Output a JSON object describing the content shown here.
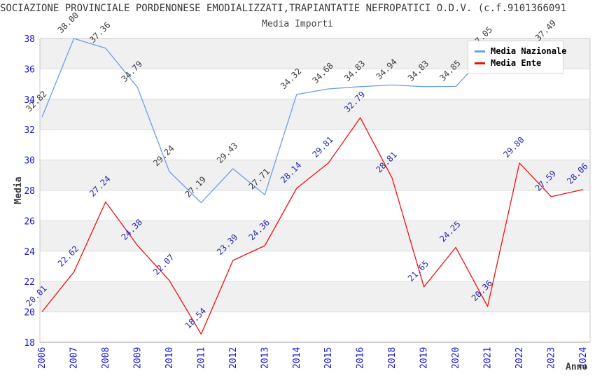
{
  "title": "SOCIAZIONE PROVINCIALE PORDENONESE EMODIALIZZATI,TRAPIANTATIE NEFROPATICI O.D.V. (c.f.9101366091",
  "subtitle": "Media Importi",
  "x_axis_title": "Anno",
  "y_axis_title": "Media",
  "legend": [
    {
      "label": "Media Nazionale",
      "color": "#6d9eea"
    },
    {
      "label": "Media Ente",
      "color": "#ee1111"
    }
  ],
  "colors": {
    "axis_tick_text": "#1515d6",
    "band_gray": "#f0f0f0",
    "band_white": "#ffffff",
    "gridline": "#dcdcdc",
    "plot_border": "#c8c8c8",
    "axis_bottom_line": "#9a9a9a",
    "title_text": "#3a3a3a",
    "nazionale_label_text": "#3c3c3c",
    "ente_label_text": "#2828b0"
  },
  "chart_data": {
    "type": "line",
    "title": "Media Importi",
    "xlabel": "Anno",
    "ylabel": "Media",
    "ylim": [
      18,
      38
    ],
    "y_ticks": [
      38,
      36,
      34,
      32,
      30,
      28,
      26,
      24,
      22,
      20,
      18
    ],
    "grid": "horizontal gridlines with alternating gray/white bands",
    "legend_position": "top-right, opaque box overlapping plot",
    "categories": [
      "2006",
      "2007",
      "2008",
      "2009",
      "2010",
      "2011",
      "2012",
      "2013",
      "2014",
      "2015",
      "2016",
      "2018",
      "2019",
      "2020",
      "2021",
      "2022",
      "2023",
      "2024"
    ],
    "series": [
      {
        "name": "Media Nazionale",
        "color": "#6d9eea",
        "label_color": "#3c3c3c",
        "values": [
          32.82,
          38.0,
          37.36,
          34.79,
          29.24,
          27.19,
          29.43,
          27.71,
          34.32,
          34.68,
          34.83,
          34.94,
          34.83,
          34.85,
          37.05,
          36.8,
          37.49,
          null
        ],
        "point_labels": [
          "32.82",
          "38.00",
          "37.36",
          "34.79",
          "29.24",
          "27.19",
          "29.43",
          "27.71",
          "34.32",
          "34.68",
          "34.83",
          "34.94",
          "34.83",
          "34.85",
          "37.05",
          "",
          "37.49",
          ""
        ]
      },
      {
        "name": "Media Ente",
        "color": "#ee1111",
        "label_color": "#2828b0",
        "values": [
          20.01,
          22.62,
          27.24,
          24.38,
          22.07,
          18.54,
          23.39,
          24.36,
          28.14,
          29.81,
          32.79,
          28.81,
          21.65,
          24.25,
          20.36,
          29.8,
          27.59,
          28.06
        ],
        "point_labels": [
          "20.01",
          "22.62",
          "27.24",
          "24.38",
          "22.07",
          "18.54",
          "23.39",
          "24.36",
          "28.14",
          "29.81",
          "32.79",
          "28.81",
          "21.65",
          "24.25",
          "20.36",
          "29.80",
          "27.59",
          "28.06"
        ]
      }
    ]
  }
}
